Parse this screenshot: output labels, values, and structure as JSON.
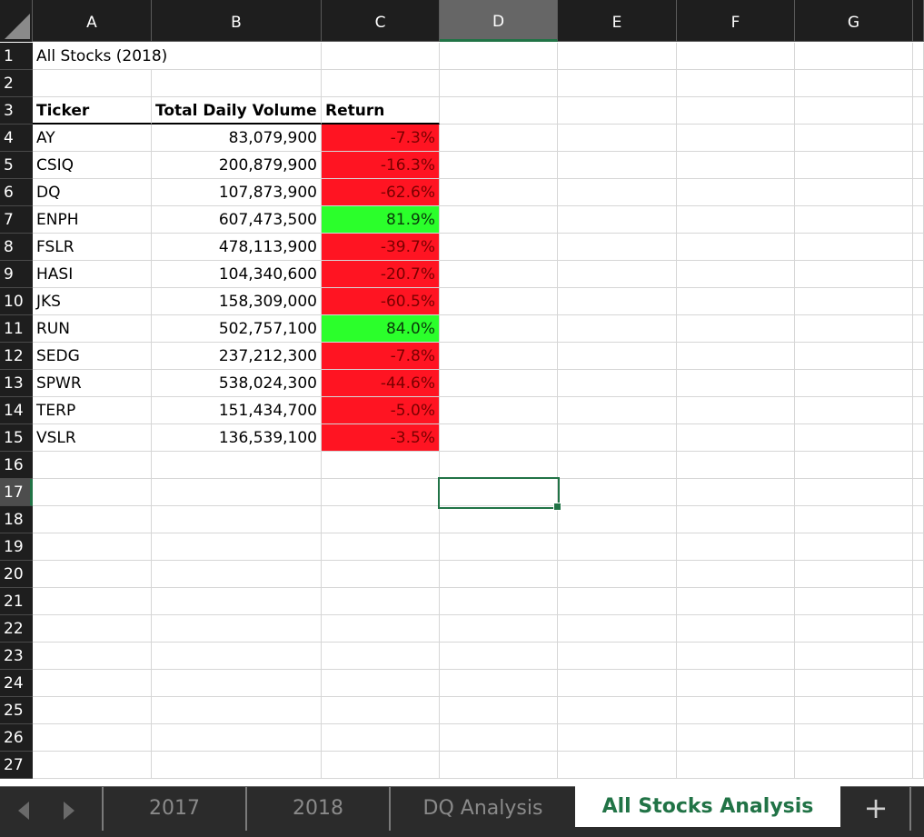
{
  "columns": [
    "A",
    "B",
    "C",
    "D",
    "E",
    "F",
    "G"
  ],
  "selected_column": "D",
  "rows": [
    "1",
    "2",
    "3",
    "4",
    "5",
    "6",
    "7",
    "8",
    "9",
    "10",
    "11",
    "12",
    "13",
    "14",
    "15",
    "16",
    "17",
    "18",
    "19",
    "20",
    "21",
    "22",
    "23",
    "24",
    "25",
    "26",
    "27"
  ],
  "selected_row": "17",
  "sheet": {
    "title": "All Stocks (2018)",
    "headers": {
      "ticker": "Ticker",
      "volume": "Total Daily Volume",
      "return": "Return"
    },
    "records": [
      {
        "ticker": "AY",
        "volume": "83,079,900",
        "return": "-7.3%",
        "status": "negative"
      },
      {
        "ticker": "CSIQ",
        "volume": "200,879,900",
        "return": "-16.3%",
        "status": "negative"
      },
      {
        "ticker": "DQ",
        "volume": "107,873,900",
        "return": "-62.6%",
        "status": "negative"
      },
      {
        "ticker": "ENPH",
        "volume": "607,473,500",
        "return": "81.9%",
        "status": "positive"
      },
      {
        "ticker": "FSLR",
        "volume": "478,113,900",
        "return": "-39.7%",
        "status": "negative"
      },
      {
        "ticker": "HASI",
        "volume": "104,340,600",
        "return": "-20.7%",
        "status": "negative"
      },
      {
        "ticker": "JKS",
        "volume": "158,309,000",
        "return": "-60.5%",
        "status": "negative"
      },
      {
        "ticker": "RUN",
        "volume": "502,757,100",
        "return": "84.0%",
        "status": "positive"
      },
      {
        "ticker": "SEDG",
        "volume": "237,212,300",
        "return": "-7.8%",
        "status": "negative"
      },
      {
        "ticker": "SPWR",
        "volume": "538,024,300",
        "return": "-44.6%",
        "status": "negative"
      },
      {
        "ticker": "TERP",
        "volume": "151,434,700",
        "return": "-5.0%",
        "status": "negative"
      },
      {
        "ticker": "VSLR",
        "volume": "136,539,100",
        "return": "-3.5%",
        "status": "negative"
      }
    ]
  },
  "tabs": {
    "items": [
      "2017",
      "2018",
      "DQ Analysis",
      "All Stocks Analysis"
    ],
    "active": "All Stocks Analysis",
    "add_label": "+"
  },
  "colors": {
    "negative_fill": "#ff1422",
    "positive_fill": "#2bff2b",
    "accent": "#217346",
    "header_bg": "#1e1e1e"
  },
  "icons": {
    "prev_sheet": "chevron-left-icon",
    "next_sheet": "chevron-right-icon",
    "select_all": "select-all-triangle-icon"
  }
}
